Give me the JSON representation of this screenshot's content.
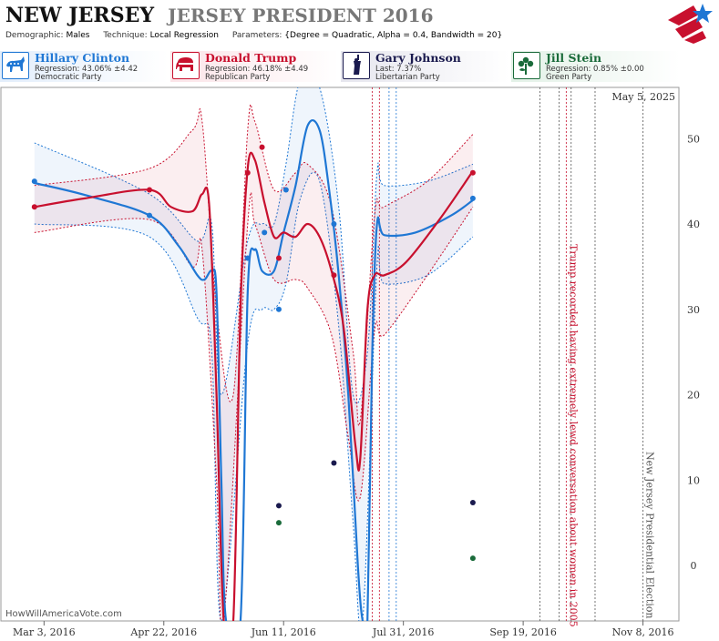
{
  "header": {
    "state": "NEW JERSEY",
    "race": "JERSEY PRESIDENT 2016",
    "demographic_label": "Demographic:",
    "demographic_value": "Males",
    "technique_label": "Technique:",
    "technique_value": "Local Regression",
    "parameters_label": "Parameters:",
    "parameters_value": "{Degree = Quadratic, Alpha = 0.4, Bandwidth = 20}"
  },
  "candidates": [
    {
      "name": "Hillary Clinton",
      "stat": "Regression: 43.06% ±4.42",
      "party": "Democratic Party",
      "color": "#1f77d4",
      "icon": "donkey-icon"
    },
    {
      "name": "Donald Trump",
      "stat": "Regression: 46.18% ±4.49",
      "party": "Republican Party",
      "color": "#c8102e",
      "icon": "elephant-icon"
    },
    {
      "name": "Gary Johnson",
      "stat": "Last: 7.37%",
      "party": "Libertarian Party",
      "color": "#1a1a4e",
      "icon": "liberty-statue-icon"
    },
    {
      "name": "Jill Stein",
      "stat": "Regression: 0.85% ±0.00",
      "party": "Green Party",
      "color": "#1a6b3a",
      "icon": "flower-icon"
    }
  ],
  "chart_data": {
    "type": "line",
    "date_label": "May 5, 2025",
    "x_ticks": [
      "Mar 3, 2016",
      "Apr 22, 2016",
      "Jun 11, 2016",
      "Jul 31, 2016",
      "Sep 19, 2016",
      "Nov 8, 2016"
    ],
    "y_ticks": [
      0,
      10,
      20,
      30,
      40,
      50
    ],
    "ylim": [
      -6.5,
      56
    ],
    "xlim": [
      "2016-02-14",
      "2016-11-23"
    ],
    "annotations": [
      {
        "text": "Trump recorded having extremely lewd conversation about women in 2005",
        "date": "2016-10-07",
        "color": "#c8102e"
      },
      {
        "text": "New Jersey Presidential Election",
        "date": "2016-11-08",
        "color": "#555555"
      }
    ],
    "event_lines": [
      {
        "date": "2016-07-18",
        "color": "#c8102e"
      },
      {
        "date": "2016-07-21",
        "color": "#c8102e"
      },
      {
        "date": "2016-07-25",
        "color": "#1f77d4"
      },
      {
        "date": "2016-07-28",
        "color": "#1f77d4"
      },
      {
        "date": "2016-09-26",
        "color": "#555555"
      },
      {
        "date": "2016-10-04",
        "color": "#555555"
      },
      {
        "date": "2016-10-07",
        "color": "#c8102e"
      },
      {
        "date": "2016-10-09",
        "color": "#555555"
      },
      {
        "date": "2016-10-19",
        "color": "#555555"
      },
      {
        "date": "2016-11-08",
        "color": "#555555"
      }
    ],
    "series": [
      {
        "name": "Hillary Clinton",
        "color": "#1f77d4",
        "points": [
          [
            "2016-02-28",
            45
          ],
          [
            "2016-04-16",
            41
          ],
          [
            "2016-05-27",
            36
          ],
          [
            "2016-06-03",
            39
          ],
          [
            "2016-06-09",
            30
          ],
          [
            "2016-06-12",
            44
          ],
          [
            "2016-07-02",
            40
          ],
          [
            "2016-08-29",
            43
          ]
        ],
        "line": [
          [
            "2016-02-28",
            44.8
          ],
          [
            "2016-03-20",
            43.4
          ],
          [
            "2016-04-16",
            41.0
          ],
          [
            "2016-04-28",
            37.5
          ],
          [
            "2016-05-06",
            34.0
          ],
          [
            "2016-05-09",
            33.5
          ],
          [
            "2016-05-12",
            34.5
          ],
          [
            "2016-05-14",
            32.0
          ],
          [
            "2016-05-16",
            10.0
          ],
          [
            "2016-05-18",
            -6.5
          ],
          [
            "2016-05-24",
            -6.5
          ],
          [
            "2016-05-27",
            32.0
          ],
          [
            "2016-05-30",
            37.0
          ],
          [
            "2016-06-02",
            34.5
          ],
          [
            "2016-06-07",
            34.5
          ],
          [
            "2016-06-11",
            39.0
          ],
          [
            "2016-06-16",
            44.5
          ],
          [
            "2016-06-21",
            51.5
          ],
          [
            "2016-06-26",
            51.0
          ],
          [
            "2016-06-30",
            44.0
          ],
          [
            "2016-07-04",
            34.0
          ],
          [
            "2016-07-08",
            20.0
          ],
          [
            "2016-07-12",
            0.0
          ],
          [
            "2016-07-14",
            -6.5
          ],
          [
            "2016-07-16",
            -6.5
          ],
          [
            "2016-07-18",
            25.0
          ],
          [
            "2016-07-20",
            40.0
          ],
          [
            "2016-07-23",
            38.7
          ],
          [
            "2016-08-05",
            39.0
          ],
          [
            "2016-08-20",
            41.0
          ],
          [
            "2016-08-29",
            42.8
          ]
        ],
        "upper": [
          [
            "2016-02-28",
            49.5
          ],
          [
            "2016-04-16",
            43.5
          ],
          [
            "2016-05-06",
            38.0
          ],
          [
            "2016-05-12",
            40.0
          ],
          [
            "2016-05-16",
            20.0
          ],
          [
            "2016-05-27",
            38.0
          ],
          [
            "2016-06-02",
            40.0
          ],
          [
            "2016-06-07",
            40.0
          ],
          [
            "2016-06-12",
            47.0
          ],
          [
            "2016-06-18",
            57.0
          ],
          [
            "2016-06-26",
            56.0
          ],
          [
            "2016-07-04",
            42.0
          ],
          [
            "2016-07-10",
            20.0
          ],
          [
            "2016-07-16",
            25.0
          ],
          [
            "2016-07-20",
            46.0
          ],
          [
            "2016-07-23",
            44.5
          ],
          [
            "2016-08-10",
            45.0
          ],
          [
            "2016-08-29",
            47.0
          ]
        ],
        "lower": [
          [
            "2016-02-28",
            40.0
          ],
          [
            "2016-04-16",
            38.5
          ],
          [
            "2016-05-06",
            29.0
          ],
          [
            "2016-05-12",
            25.0
          ],
          [
            "2016-05-16",
            -6.5
          ],
          [
            "2016-05-27",
            26.0
          ],
          [
            "2016-06-02",
            30.0
          ],
          [
            "2016-06-07",
            30.0
          ],
          [
            "2016-06-12",
            33.0
          ],
          [
            "2016-06-18",
            43.0
          ],
          [
            "2016-06-26",
            45.0
          ],
          [
            "2016-07-04",
            28.0
          ],
          [
            "2016-07-10",
            5.0
          ],
          [
            "2016-07-14",
            -6.5
          ],
          [
            "2016-07-20",
            35.0
          ],
          [
            "2016-07-23",
            33.0
          ],
          [
            "2016-08-10",
            34.0
          ],
          [
            "2016-08-29",
            38.5
          ]
        ]
      },
      {
        "name": "Donald Trump",
        "color": "#c8102e",
        "points": [
          [
            "2016-02-28",
            42
          ],
          [
            "2016-04-16",
            44
          ],
          [
            "2016-05-27",
            46
          ],
          [
            "2016-06-02",
            49
          ],
          [
            "2016-06-09",
            36
          ],
          [
            "2016-07-02",
            34
          ],
          [
            "2016-08-29",
            46
          ]
        ],
        "line": [
          [
            "2016-02-28",
            42.0
          ],
          [
            "2016-03-20",
            43.0
          ],
          [
            "2016-04-16",
            44.0
          ],
          [
            "2016-04-25",
            42.0
          ],
          [
            "2016-05-04",
            41.5
          ],
          [
            "2016-05-08",
            43.5
          ],
          [
            "2016-05-11",
            42.0
          ],
          [
            "2016-05-14",
            20.0
          ],
          [
            "2016-05-17",
            -6.5
          ],
          [
            "2016-05-21",
            -6.5
          ],
          [
            "2016-05-24",
            30.0
          ],
          [
            "2016-05-27",
            46.5
          ],
          [
            "2016-05-30",
            47.5
          ],
          [
            "2016-06-03",
            42.5
          ],
          [
            "2016-06-07",
            38.5
          ],
          [
            "2016-06-11",
            39.0
          ],
          [
            "2016-06-16",
            38.5
          ],
          [
            "2016-06-21",
            40.0
          ],
          [
            "2016-06-26",
            38.5
          ],
          [
            "2016-07-01",
            34.5
          ],
          [
            "2016-07-06",
            28.0
          ],
          [
            "2016-07-11",
            14.0
          ],
          [
            "2016-07-13",
            12.5
          ],
          [
            "2016-07-16",
            30.0
          ],
          [
            "2016-07-19",
            34.0
          ],
          [
            "2016-07-23",
            34.0
          ],
          [
            "2016-08-01",
            35.5
          ],
          [
            "2016-08-15",
            40.5
          ],
          [
            "2016-08-29",
            46.2
          ]
        ],
        "upper": [
          [
            "2016-02-28",
            44.5
          ],
          [
            "2016-04-16",
            46.5
          ],
          [
            "2016-05-04",
            51.0
          ],
          [
            "2016-05-08",
            52.0
          ],
          [
            "2016-05-14",
            30.0
          ],
          [
            "2016-05-21",
            20.0
          ],
          [
            "2016-05-27",
            51.0
          ],
          [
            "2016-05-30",
            52.0
          ],
          [
            "2016-06-07",
            44.0
          ],
          [
            "2016-06-16",
            46.0
          ],
          [
            "2016-06-21",
            47.0
          ],
          [
            "2016-07-01",
            42.0
          ],
          [
            "2016-07-10",
            25.0
          ],
          [
            "2016-07-13",
            17.0
          ],
          [
            "2016-07-19",
            41.0
          ],
          [
            "2016-07-23",
            42.0
          ],
          [
            "2016-08-10",
            45.0
          ],
          [
            "2016-08-29",
            50.5
          ]
        ],
        "lower": [
          [
            "2016-02-28",
            39.0
          ],
          [
            "2016-04-16",
            40.5
          ],
          [
            "2016-05-04",
            35.0
          ],
          [
            "2016-05-08",
            37.0
          ],
          [
            "2016-05-14",
            10.0
          ],
          [
            "2016-05-17",
            -6.5
          ],
          [
            "2016-05-27",
            40.0
          ],
          [
            "2016-05-30",
            40.0
          ],
          [
            "2016-06-07",
            33.5
          ],
          [
            "2016-06-16",
            33.5
          ],
          [
            "2016-06-21",
            32.5
          ],
          [
            "2016-07-01",
            27.0
          ],
          [
            "2016-07-08",
            15.0
          ],
          [
            "2016-07-13",
            8.0
          ],
          [
            "2016-07-19",
            27.5
          ],
          [
            "2016-07-23",
            27.0
          ],
          [
            "2016-08-10",
            34.0
          ],
          [
            "2016-08-29",
            42.0
          ]
        ]
      },
      {
        "name": "Gary Johnson",
        "color": "#1a1a4e",
        "points": [
          [
            "2016-06-09",
            7
          ],
          [
            "2016-07-02",
            12
          ],
          [
            "2016-08-29",
            7.37
          ]
        ]
      },
      {
        "name": "Jill Stein",
        "color": "#1a6b3a",
        "points": [
          [
            "2016-06-09",
            5
          ],
          [
            "2016-08-29",
            0.85
          ]
        ]
      }
    ]
  },
  "watermark": "HowWillAmericaVote.com"
}
